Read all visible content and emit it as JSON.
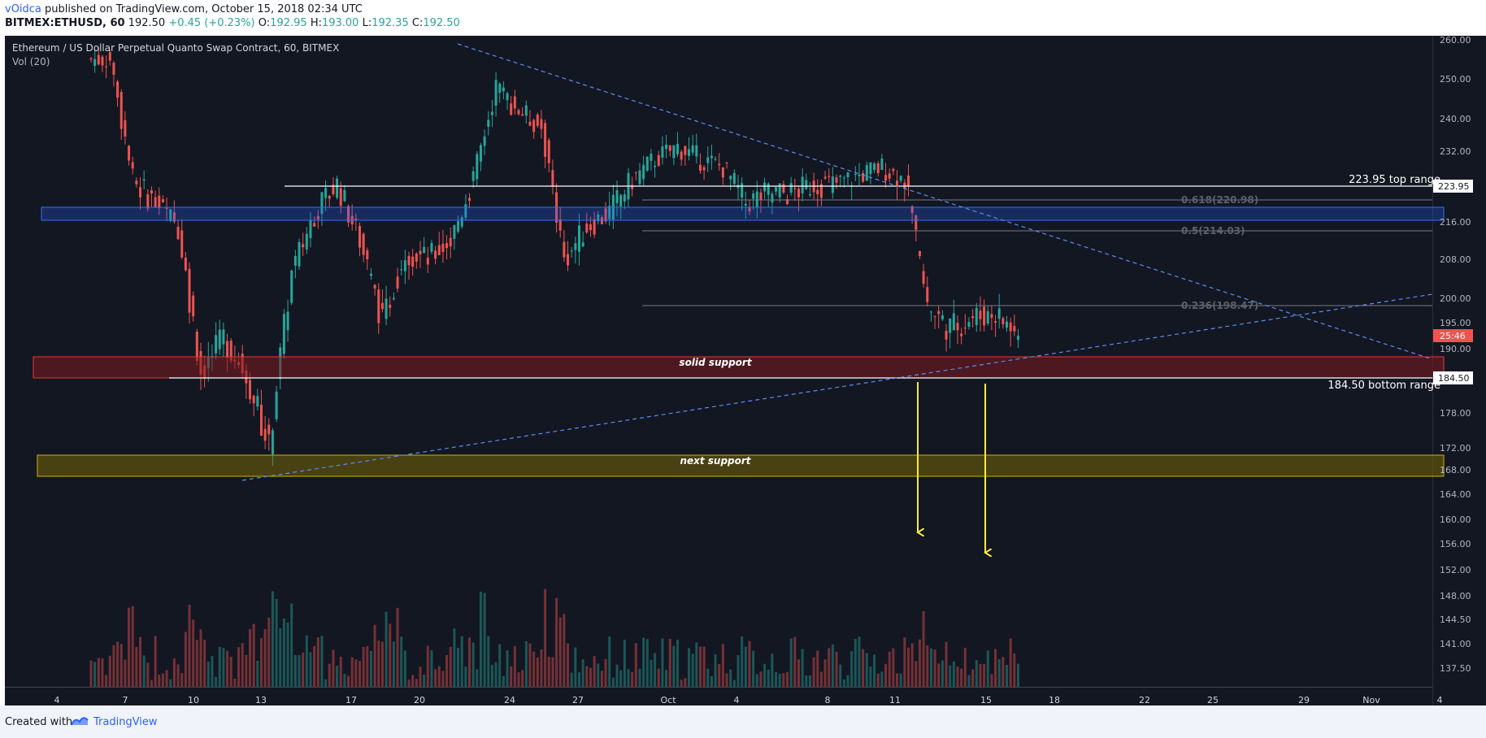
{
  "header": {
    "author": "vOidca",
    "published_text": " published on TradingView.com, October 15, 2018 02:34 UTC",
    "symbol": "BITMEX:ETHUSD, 60",
    "last": "192.50",
    "change": "+0.45 (+0.23%)",
    "o_label": "O:",
    "o_value": "192.95",
    "h_label": "H:",
    "h_value": "193.00",
    "l_label": "L:",
    "l_value": "192.35",
    "c_label": "C:",
    "c_value": "192.50"
  },
  "legend": {
    "title": "Ethereum / US Dollar Perpetual Quanto Swap Contract, 60, BITMEX",
    "volume": "Vol (20)"
  },
  "annotations": {
    "top_range": "223.95 top range",
    "bottom_range": "184.50 bottom range",
    "solid_support": "solid support",
    "next_support": "next support",
    "fib_618": "0.618(220.98)",
    "fib_05": "0.5(214.03)",
    "fib_236": "0.236(198.47)"
  },
  "price_axis": {
    "labels": [
      "260.00",
      "250.00",
      "240.00",
      "232.00",
      "224.00",
      "216.00",
      "208.00",
      "200.00",
      "195.00",
      "190.00",
      "184.00",
      "178.00",
      "172.00",
      "168.00",
      "164.00",
      "160.00",
      "156.00",
      "152.00",
      "148.00",
      "144.50",
      "141.00",
      "137.50"
    ],
    "tag_top": "223.95",
    "tag_bottom": "184.50",
    "tag_current": "25:46",
    "colors": {
      "tag_current_bg": "#ef5350",
      "tag_default_bg": "#ffffff"
    }
  },
  "time_axis": {
    "labels": [
      "4",
      "7",
      "10",
      "13",
      "17",
      "20",
      "24",
      "27",
      "Oct",
      "4",
      "8",
      "11",
      "15",
      "18",
      "22",
      "25",
      "29",
      "Nov",
      "4"
    ]
  },
  "footer": {
    "created_with": "Created with",
    "brand": "TradingView"
  },
  "colors": {
    "background": "#131722",
    "up": "#26a69a",
    "down": "#ef5350",
    "blue_zone": "#2962ff",
    "red_zone": "#7f1a1f",
    "yellow_zone": "#b8a000",
    "arrow": "#ffeb3b",
    "trendline": "#5b8def"
  },
  "chart_data": {
    "type": "candlestick",
    "title": "Ethereum / US Dollar Perpetual Quanto Swap Contract, 60, BITMEX",
    "x_labels": [
      "4",
      "7",
      "10",
      "13",
      "17",
      "20",
      "24",
      "27",
      "Oct",
      "4",
      "8",
      "11",
      "15",
      "18",
      "22",
      "25",
      "29",
      "Nov",
      "4"
    ],
    "price_range": [
      137.5,
      260
    ],
    "approx_closes": [
      [
        "Sep 5",
        255
      ],
      [
        "Sep 6",
        225
      ],
      [
        "Sep 7",
        220
      ],
      [
        "Sep 8",
        215
      ],
      [
        "Sep 9",
        185
      ],
      [
        "Sep 10",
        192
      ],
      [
        "Sep 11",
        185
      ],
      [
        "Sep 12",
        172
      ],
      [
        "Sep 13",
        205
      ],
      [
        "Sep 14",
        218
      ],
      [
        "Sep 15",
        224
      ],
      [
        "Sep 16",
        212
      ],
      [
        "Sep 17",
        195
      ],
      [
        "Sep 18",
        210
      ],
      [
        "Sep 19",
        208
      ],
      [
        "Sep 20",
        212
      ],
      [
        "Sep 21",
        225
      ],
      [
        "Sep 22",
        248
      ],
      [
        "Sep 23",
        242
      ],
      [
        "Sep 24",
        238
      ],
      [
        "Sep 25",
        208
      ],
      [
        "Sep 26",
        215
      ],
      [
        "Sep 27",
        218
      ],
      [
        "Sep 28",
        225
      ],
      [
        "Sep 29",
        230
      ],
      [
        "Sep 30",
        233
      ],
      [
        "Oct 1",
        230
      ],
      [
        "Oct 2",
        228
      ],
      [
        "Oct 3",
        220
      ],
      [
        "Oct 4",
        222
      ],
      [
        "Oct 5",
        222
      ],
      [
        "Oct 6",
        224
      ],
      [
        "Oct 7",
        224
      ],
      [
        "Oct 8",
        226
      ],
      [
        "Oct 9",
        228
      ],
      [
        "Oct 10",
        225
      ],
      [
        "Oct 11",
        198
      ],
      [
        "Oct 12",
        194
      ],
      [
        "Oct 13",
        196
      ],
      [
        "Oct 14",
        197
      ],
      [
        "Oct 15",
        192.5
      ]
    ],
    "levels": {
      "top_range": 223.95,
      "bottom_range": 184.5,
      "fib_0.618": 220.98,
      "fib_0.5": 214.03,
      "fib_0.236": 198.47
    },
    "zones": [
      {
        "label": "solid support",
        "from": 184.5,
        "to": 188.2
      },
      {
        "label": "next support",
        "from": 167.2,
        "to": 170.8
      },
      {
        "label": "",
        "from": 215.8,
        "to": 218.4
      }
    ]
  }
}
